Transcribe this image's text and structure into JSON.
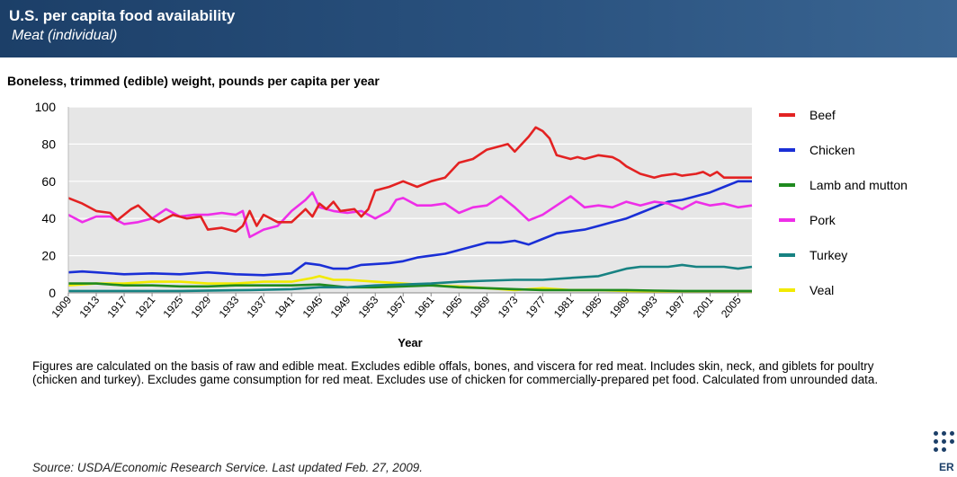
{
  "header": {
    "title": "U.S. per capita food availability",
    "subtitle": "Meat (individual)"
  },
  "chart_top_label": "Boneless, trimmed (edible) weight, pounds per capita per year",
  "notes": "Figures are calculated on the basis of raw and edible meat. Excludes edible offals, bones, and viscera for red meat. Includes skin, neck, and giblets for poultry (chicken and turkey). Excludes game consumption for red meat. Excludes use of chicken for commercially-prepared pet food.  Calculated from unrounded data.",
  "source": "Source: USDA/Economic Research Service. Last updated Feb. 27, 2009.",
  "logo_text": "ER",
  "chart_data": {
    "type": "line",
    "title": "",
    "xlabel": "Year",
    "ylabel": "",
    "xlim": [
      1909,
      2007
    ],
    "ylim": [
      0,
      100
    ],
    "yticks": [
      0,
      20,
      40,
      60,
      80,
      100
    ],
    "xticks": [
      1909,
      1913,
      1917,
      1921,
      1925,
      1929,
      1933,
      1937,
      1941,
      1945,
      1949,
      1953,
      1957,
      1961,
      1965,
      1969,
      1973,
      1977,
      1981,
      1985,
      1989,
      1993,
      1997,
      2001,
      2005
    ],
    "grid": true,
    "legend_position": "right",
    "series": [
      {
        "name": "Beef",
        "color": "#e32222",
        "points": [
          [
            1909,
            51
          ],
          [
            1911,
            48
          ],
          [
            1913,
            44
          ],
          [
            1915,
            43
          ],
          [
            1916,
            39
          ],
          [
            1918,
            45
          ],
          [
            1919,
            47
          ],
          [
            1921,
            40
          ],
          [
            1922,
            38
          ],
          [
            1924,
            42
          ],
          [
            1926,
            40
          ],
          [
            1928,
            41
          ],
          [
            1929,
            34
          ],
          [
            1931,
            35
          ],
          [
            1933,
            33
          ],
          [
            1934,
            36
          ],
          [
            1935,
            44
          ],
          [
            1936,
            36
          ],
          [
            1937,
            42
          ],
          [
            1939,
            38
          ],
          [
            1941,
            38
          ],
          [
            1943,
            45
          ],
          [
            1944,
            41
          ],
          [
            1945,
            48
          ],
          [
            1946,
            45
          ],
          [
            1947,
            49
          ],
          [
            1948,
            44
          ],
          [
            1950,
            45
          ],
          [
            1951,
            41
          ],
          [
            1952,
            45
          ],
          [
            1953,
            55
          ],
          [
            1955,
            57
          ],
          [
            1957,
            60
          ],
          [
            1959,
            57
          ],
          [
            1961,
            60
          ],
          [
            1963,
            62
          ],
          [
            1965,
            70
          ],
          [
            1967,
            72
          ],
          [
            1969,
            77
          ],
          [
            1971,
            79
          ],
          [
            1972,
            80
          ],
          [
            1973,
            76
          ],
          [
            1975,
            84
          ],
          [
            1976,
            89
          ],
          [
            1977,
            87
          ],
          [
            1978,
            83
          ],
          [
            1979,
            74
          ],
          [
            1981,
            72
          ],
          [
            1982,
            73
          ],
          [
            1983,
            72
          ],
          [
            1985,
            74
          ],
          [
            1987,
            73
          ],
          [
            1988,
            71
          ],
          [
            1989,
            68
          ],
          [
            1990,
            66
          ],
          [
            1991,
            64
          ],
          [
            1993,
            62
          ],
          [
            1994,
            63
          ],
          [
            1996,
            64
          ],
          [
            1997,
            63
          ],
          [
            1999,
            64
          ],
          [
            2000,
            65
          ],
          [
            2001,
            63
          ],
          [
            2002,
            65
          ],
          [
            2003,
            62
          ],
          [
            2005,
            62
          ],
          [
            2007,
            62
          ]
        ]
      },
      {
        "name": "Chicken",
        "color": "#1a2fd6",
        "points": [
          [
            1909,
            11
          ],
          [
            1911,
            11.5
          ],
          [
            1913,
            11
          ],
          [
            1917,
            10
          ],
          [
            1921,
            10.5
          ],
          [
            1925,
            10
          ],
          [
            1929,
            11
          ],
          [
            1933,
            10
          ],
          [
            1937,
            9.5
          ],
          [
            1941,
            10.5
          ],
          [
            1943,
            16
          ],
          [
            1945,
            15
          ],
          [
            1947,
            13
          ],
          [
            1949,
            13
          ],
          [
            1951,
            15
          ],
          [
            1955,
            16
          ],
          [
            1957,
            17
          ],
          [
            1959,
            19
          ],
          [
            1961,
            20
          ],
          [
            1963,
            21
          ],
          [
            1965,
            23
          ],
          [
            1967,
            25
          ],
          [
            1969,
            27
          ],
          [
            1971,
            27
          ],
          [
            1973,
            28
          ],
          [
            1975,
            26
          ],
          [
            1977,
            29
          ],
          [
            1979,
            32
          ],
          [
            1981,
            33
          ],
          [
            1983,
            34
          ],
          [
            1985,
            36
          ],
          [
            1987,
            38
          ],
          [
            1989,
            40
          ],
          [
            1991,
            43
          ],
          [
            1993,
            46
          ],
          [
            1995,
            49
          ],
          [
            1997,
            50
          ],
          [
            1999,
            52
          ],
          [
            2001,
            54
          ],
          [
            2003,
            57
          ],
          [
            2005,
            60
          ],
          [
            2007,
            60
          ]
        ]
      },
      {
        "name": "Lamb and mutton",
        "color": "#1f8a1f",
        "points": [
          [
            1909,
            5
          ],
          [
            1913,
            5
          ],
          [
            1917,
            4
          ],
          [
            1921,
            4
          ],
          [
            1925,
            3.5
          ],
          [
            1929,
            3.5
          ],
          [
            1933,
            4
          ],
          [
            1937,
            4
          ],
          [
            1941,
            4
          ],
          [
            1945,
            4.5
          ],
          [
            1949,
            3
          ],
          [
            1953,
            3
          ],
          [
            1957,
            3.5
          ],
          [
            1961,
            4
          ],
          [
            1965,
            3
          ],
          [
            1969,
            2.5
          ],
          [
            1973,
            2
          ],
          [
            1977,
            1.5
          ],
          [
            1981,
            1.5
          ],
          [
            1985,
            1.5
          ],
          [
            1989,
            1.5
          ],
          [
            1993,
            1.2
          ],
          [
            1997,
            1
          ],
          [
            2001,
            1
          ],
          [
            2005,
            1
          ],
          [
            2007,
            1
          ]
        ]
      },
      {
        "name": "Pork",
        "color": "#ee2ee8",
        "points": [
          [
            1909,
            42
          ],
          [
            1911,
            38
          ],
          [
            1913,
            41
          ],
          [
            1915,
            41
          ],
          [
            1917,
            37
          ],
          [
            1919,
            38
          ],
          [
            1921,
            40
          ],
          [
            1923,
            45
          ],
          [
            1925,
            41
          ],
          [
            1927,
            42
          ],
          [
            1929,
            42
          ],
          [
            1931,
            43
          ],
          [
            1933,
            42
          ],
          [
            1934,
            44
          ],
          [
            1935,
            30
          ],
          [
            1937,
            34
          ],
          [
            1939,
            36
          ],
          [
            1941,
            44
          ],
          [
            1943,
            50
          ],
          [
            1944,
            54
          ],
          [
            1945,
            46
          ],
          [
            1947,
            44
          ],
          [
            1949,
            43
          ],
          [
            1951,
            44
          ],
          [
            1953,
            40
          ],
          [
            1955,
            44
          ],
          [
            1956,
            50
          ],
          [
            1957,
            51
          ],
          [
            1959,
            47
          ],
          [
            1961,
            47
          ],
          [
            1963,
            48
          ],
          [
            1965,
            43
          ],
          [
            1967,
            46
          ],
          [
            1969,
            47
          ],
          [
            1971,
            52
          ],
          [
            1973,
            46
          ],
          [
            1975,
            39
          ],
          [
            1977,
            42
          ],
          [
            1979,
            47
          ],
          [
            1981,
            52
          ],
          [
            1983,
            46
          ],
          [
            1985,
            47
          ],
          [
            1987,
            46
          ],
          [
            1989,
            49
          ],
          [
            1991,
            47
          ],
          [
            1993,
            49
          ],
          [
            1995,
            48
          ],
          [
            1997,
            45
          ],
          [
            1999,
            49
          ],
          [
            2001,
            47
          ],
          [
            2003,
            48
          ],
          [
            2005,
            46
          ],
          [
            2007,
            47
          ]
        ]
      },
      {
        "name": "Turkey",
        "color": "#178282",
        "points": [
          [
            1909,
            1
          ],
          [
            1925,
            1
          ],
          [
            1935,
            1.5
          ],
          [
            1941,
            2
          ],
          [
            1945,
            3
          ],
          [
            1949,
            3
          ],
          [
            1953,
            4
          ],
          [
            1957,
            4.5
          ],
          [
            1961,
            5
          ],
          [
            1965,
            6
          ],
          [
            1969,
            6.5
          ],
          [
            1973,
            7
          ],
          [
            1977,
            7
          ],
          [
            1981,
            8
          ],
          [
            1985,
            9
          ],
          [
            1987,
            11
          ],
          [
            1989,
            13
          ],
          [
            1991,
            14
          ],
          [
            1993,
            14
          ],
          [
            1995,
            14
          ],
          [
            1997,
            15
          ],
          [
            1999,
            14
          ],
          [
            2001,
            14
          ],
          [
            2003,
            14
          ],
          [
            2005,
            13
          ],
          [
            2007,
            14
          ]
        ]
      },
      {
        "name": "Veal",
        "color": "#f2ea00",
        "points": [
          [
            1909,
            4
          ],
          [
            1913,
            5
          ],
          [
            1917,
            5
          ],
          [
            1921,
            6
          ],
          [
            1925,
            6
          ],
          [
            1929,
            5
          ],
          [
            1933,
            5
          ],
          [
            1937,
            6
          ],
          [
            1941,
            6
          ],
          [
            1944,
            8
          ],
          [
            1945,
            9
          ],
          [
            1947,
            7
          ],
          [
            1949,
            7
          ],
          [
            1953,
            6
          ],
          [
            1957,
            5
          ],
          [
            1961,
            4
          ],
          [
            1965,
            3.5
          ],
          [
            1969,
            2.5
          ],
          [
            1973,
            1.5
          ],
          [
            1977,
            2.5
          ],
          [
            1981,
            1.5
          ],
          [
            1985,
            1.5
          ],
          [
            1989,
            1
          ],
          [
            1993,
            0.8
          ],
          [
            1997,
            0.6
          ],
          [
            2001,
            0.5
          ],
          [
            2005,
            0.4
          ],
          [
            2007,
            0.4
          ]
        ]
      }
    ]
  }
}
